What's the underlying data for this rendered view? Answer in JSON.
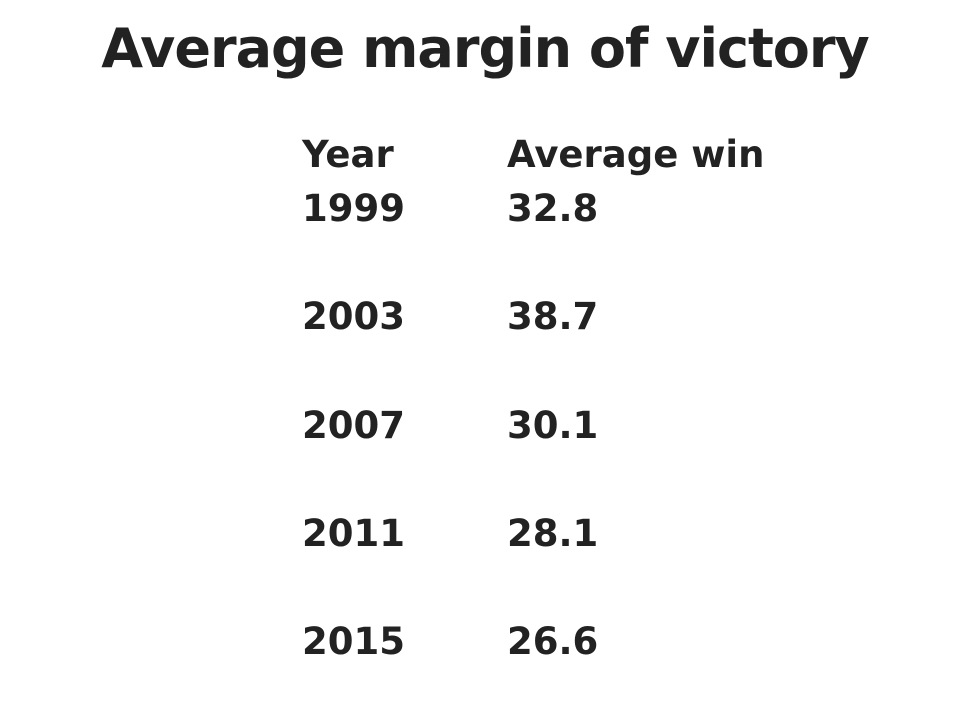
{
  "title": "Average margin of victory",
  "table": {
    "header": [
      "Year",
      "Average win"
    ],
    "rows": [
      [
        1999,
        32.8
      ],
      [
        2003,
        38.7
      ],
      [
        2007,
        30.1
      ],
      [
        2011,
        28.1
      ],
      [
        2015,
        26.6
      ]
    ]
  }
}
